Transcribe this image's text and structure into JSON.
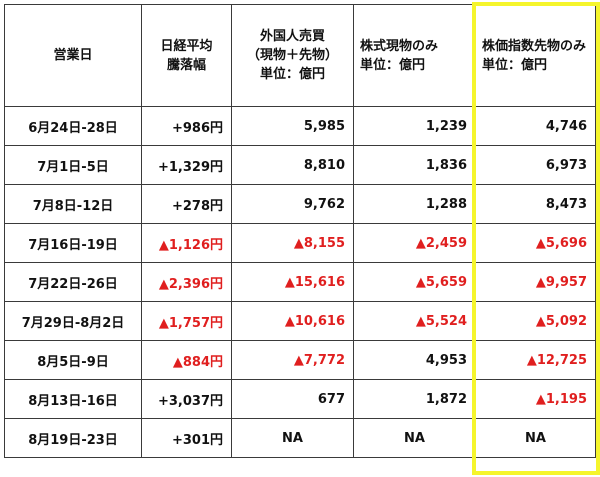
{
  "headers": {
    "c1": [
      "営業日"
    ],
    "c2": [
      "日経平均",
      "騰落幅"
    ],
    "c3": [
      "外国人売買",
      "（現物＋先物）",
      "単位：億円"
    ],
    "c4": [
      "株式現物のみ",
      "単位：億円"
    ],
    "c5": [
      "株価指数先物のみ",
      "単位：億円"
    ]
  },
  "rows": [
    {
      "date": "6月24日-28日",
      "nikkei": "+986円",
      "total": "5,985",
      "spot": "1,239",
      "futures": "4,746"
    },
    {
      "date": "7月1日-5日",
      "nikkei": "+1,329円",
      "total": "8,810",
      "spot": "1,836",
      "futures": "6,973"
    },
    {
      "date": "7月8日-12日",
      "nikkei": "+278円",
      "total": "9,762",
      "spot": "1,288",
      "futures": "8,473"
    },
    {
      "date": "7月16日-19日",
      "nikkei": "▲1,126円",
      "total": "▲8,155",
      "spot": "▲2,459",
      "futures": "▲5,696"
    },
    {
      "date": "7月22日-26日",
      "nikkei": "▲2,396円",
      "total": "▲15,616",
      "spot": "▲5,659",
      "futures": "▲9,957"
    },
    {
      "date": "7月29日-8月2日",
      "nikkei": "▲1,757円",
      "total": "▲10,616",
      "spot": "▲5,524",
      "futures": "▲5,092"
    },
    {
      "date": "8月5日-9日",
      "nikkei": "▲884円",
      "total": "▲7,772",
      "spot": "4,953",
      "futures": "▲12,725"
    },
    {
      "date": "8月13日-16日",
      "nikkei": "+3,037円",
      "total": "677",
      "spot": "1,872",
      "futures": "▲1,195"
    },
    {
      "date": "8月19日-23日",
      "nikkei": "+301円",
      "total": "NA",
      "spot": "NA",
      "futures": "NA"
    }
  ],
  "colors": {
    "negative": "#e01f1f",
    "highlight_border": "#f5f52c",
    "grid": "#3a3a3a"
  }
}
